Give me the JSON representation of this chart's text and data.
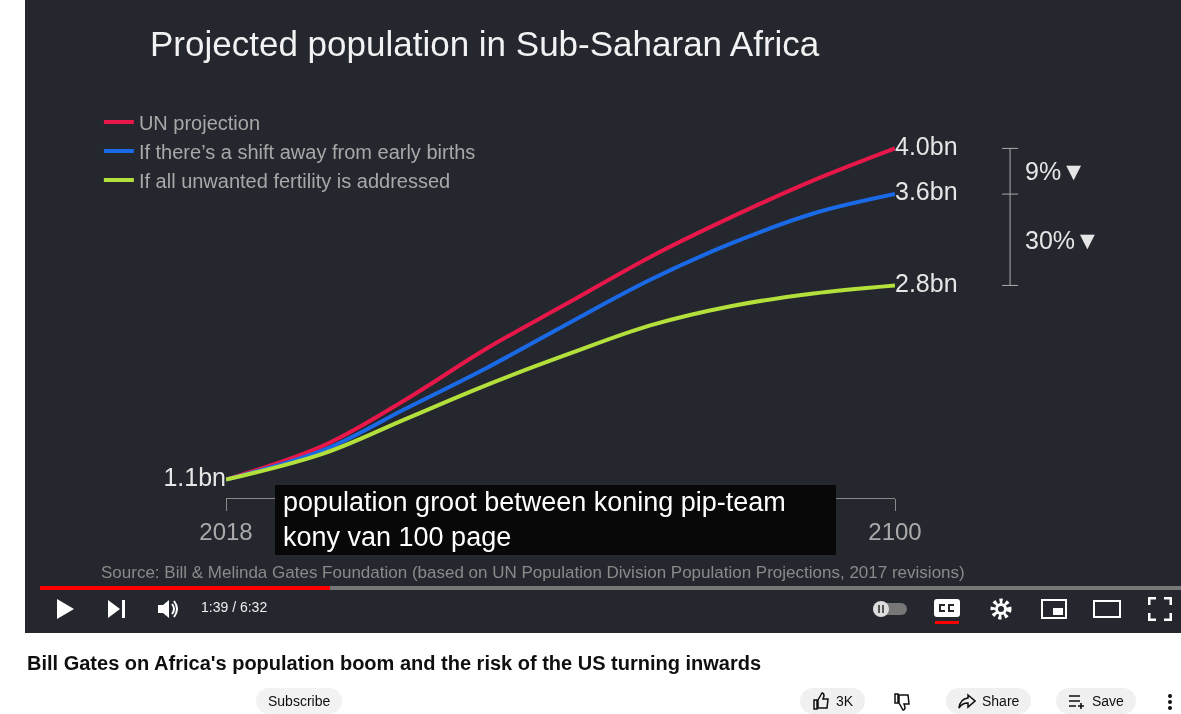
{
  "chart_data": {
    "type": "line",
    "title": "Projected population in Sub-Saharan Africa",
    "x": [
      2018,
      2030,
      2040,
      2050,
      2060,
      2070,
      2080,
      2090,
      2100
    ],
    "xlim": [
      2018,
      2100
    ],
    "xticks": [
      2018,
      2100
    ],
    "tick_labels": "x",
    "legend": "top left",
    "marker": "none",
    "line_style": "solid",
    "series": [
      {
        "name": "UN projection",
        "color": "#e8174a",
        "values": [
          1.1,
          1.4,
          1.8,
          2.25,
          2.65,
          3.05,
          3.4,
          3.72,
          4.0
        ],
        "value_labels": [
          "1.1bn",
          null,
          null,
          null,
          null,
          null,
          null,
          null,
          "4.0bn"
        ]
      },
      {
        "name": "If there’s a shift away from early births",
        "color": "#1a6ae8",
        "values": [
          1.1,
          1.36,
          1.72,
          2.08,
          2.47,
          2.85,
          3.17,
          3.43,
          3.6
        ],
        "value_labels": [
          null,
          null,
          null,
          null,
          null,
          null,
          null,
          null,
          "3.6bn"
        ]
      },
      {
        "name": "If all unwanted fertility is addressed",
        "color": "#b3e03a",
        "values": [
          1.1,
          1.33,
          1.63,
          1.93,
          2.2,
          2.45,
          2.62,
          2.73,
          2.8
        ],
        "value_labels": [
          null,
          null,
          null,
          null,
          null,
          null,
          null,
          null,
          "2.8bn"
        ]
      }
    ],
    "annotations": [
      "9%▼",
      "30%▼",
      "Source: Bill & Melinda Gates Foundation (based on UN Population Division Population Projections, 2017 revisions)",
      "population groot between koning pip-team kony van 100 page",
      "1:39 / 6:32",
      "Bill Gates on Africa's population boom and the risk of the US turning inwards",
      "Subscribe",
      "3K",
      "Share",
      "Save"
    ]
  }
}
